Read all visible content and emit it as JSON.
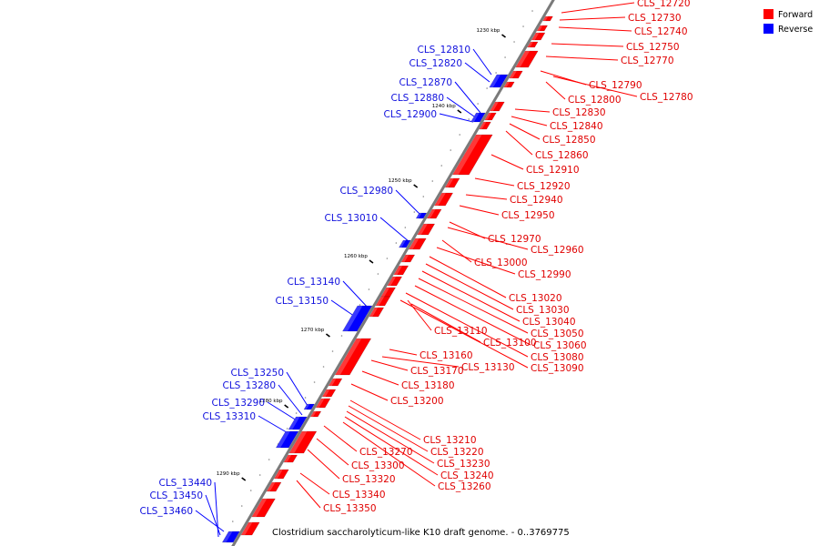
{
  "caption": "Clostridium saccharolyticum-like K10 draft genome. - 0..3769775",
  "legend": [
    {
      "label": "Forward",
      "color": "#ff0000"
    },
    {
      "label": "Reverse",
      "color": "#0000ff"
    }
  ],
  "colors": {
    "forward": "#ff0000",
    "reverse": "#0000ff",
    "forward_label": "#e00000",
    "reverse_label": "#1010dd",
    "backbone": "#7a7a7a"
  },
  "ticks": [
    "1230 kbp",
    "1240 kbp",
    "1250 kbp",
    "1260 kbp",
    "1270 kbp",
    "1280 kbp",
    "1290 kbp"
  ],
  "genes_forward": [
    "CLS_12720",
    "CLS_12730",
    "CLS_12740",
    "CLS_12750",
    "CLS_12770",
    "CLS_12790",
    "CLS_12780",
    "CLS_12800",
    "CLS_12830",
    "CLS_12840",
    "CLS_12850",
    "CLS_12860",
    "CLS_12910",
    "CLS_12920",
    "CLS_12940",
    "CLS_12950",
    "CLS_12970",
    "CLS_12960",
    "CLS_13000",
    "CLS_12990",
    "CLS_13020",
    "CLS_13030",
    "CLS_13040",
    "CLS_13050",
    "CLS_13060",
    "CLS_13110",
    "CLS_13100",
    "CLS_13080",
    "CLS_13160",
    "CLS_13130",
    "CLS_13090",
    "CLS_13170",
    "CLS_13180",
    "CLS_13200",
    "CLS_13210",
    "CLS_13220",
    "CLS_13270",
    "CLS_13230",
    "CLS_13300",
    "CLS_13240",
    "CLS_13320",
    "CLS_13260",
    "CLS_13340",
    "CLS_13350"
  ],
  "genes_reverse": [
    "CLS_12810",
    "CLS_12820",
    "CLS_12870",
    "CLS_12880",
    "CLS_12900",
    "CLS_12980",
    "CLS_13010",
    "CLS_13140",
    "CLS_13150",
    "CLS_13250",
    "CLS_13280",
    "CLS_13290",
    "CLS_13310",
    "CLS_13440",
    "CLS_13450",
    "CLS_13460"
  ]
}
